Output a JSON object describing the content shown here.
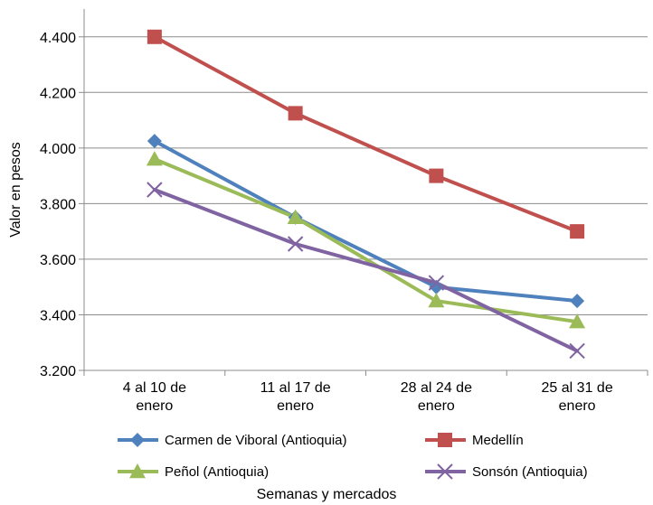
{
  "chart_data": {
    "type": "line",
    "categories": [
      "4 al 10 de enero",
      "11 al 17 de enero",
      "28 al 24 de enero",
      "25 al 31 de enero"
    ],
    "category_lines": [
      [
        "4 al 10 de",
        "enero"
      ],
      [
        "11 al 17 de",
        "enero"
      ],
      [
        "28 al 24 de",
        "enero"
      ],
      [
        "25 al 31 de",
        "enero"
      ]
    ],
    "xlabel": "Semanas y mercados",
    "ylabel": "Valor en pesos",
    "ylim": [
      3200,
      4500
    ],
    "yticks": [
      3200,
      3400,
      3600,
      3800,
      4000,
      4200,
      4400
    ],
    "ytick_labels": [
      "3.200",
      "3.400",
      "3.600",
      "3.800",
      "4.000",
      "4.200",
      "4.400"
    ],
    "grid": true,
    "legend": "bottom",
    "series": [
      {
        "name": "Carmen de Viboral (Antioquia)",
        "color": "#4f81bd",
        "marker": "diamond",
        "values": [
          4025,
          3750,
          3500,
          3450
        ]
      },
      {
        "name": "Medellín",
        "color": "#c0504d",
        "marker": "square",
        "values": [
          4400,
          4125,
          3900,
          3700
        ]
      },
      {
        "name": "Peñol (Antioquia)",
        "color": "#9bbb59",
        "marker": "triangle",
        "values": [
          3960,
          3750,
          3450,
          3375
        ]
      },
      {
        "name": "Sonsón (Antioquia)",
        "color": "#8064a2",
        "marker": "x",
        "values": [
          3850,
          3655,
          3515,
          3270
        ]
      }
    ]
  }
}
